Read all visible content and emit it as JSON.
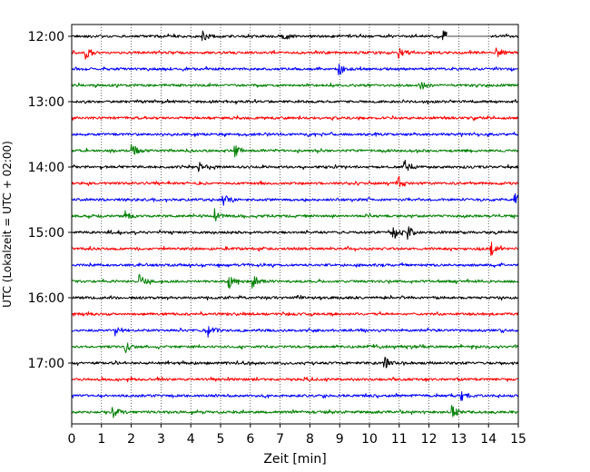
{
  "chart_data": {
    "type": "line",
    "title": "",
    "xlabel": "Zeit  [min]",
    "ylabel": "UTC (Lokalzeit = UTC + 02:00)",
    "xlim": [
      0,
      15
    ],
    "x_ticks": [
      "0",
      "1",
      "2",
      "3",
      "4",
      "5",
      "6",
      "7",
      "8",
      "9",
      "10",
      "11",
      "12",
      "13",
      "14",
      "15"
    ],
    "y_ticks": [
      "12:00",
      "13:00",
      "14:00",
      "15:00",
      "16:00",
      "17:00"
    ],
    "grid": "vertical dotted",
    "legend": "none",
    "trace_interval_minutes": 15,
    "series": [
      {
        "start": "12:00",
        "color": "#000000"
      },
      {
        "start": "12:15",
        "color": "#ff0000"
      },
      {
        "start": "12:30",
        "color": "#0000ff"
      },
      {
        "start": "12:45",
        "color": "#008000"
      },
      {
        "start": "13:00",
        "color": "#000000"
      },
      {
        "start": "13:15",
        "color": "#ff0000"
      },
      {
        "start": "13:30",
        "color": "#0000ff"
      },
      {
        "start": "13:45",
        "color": "#008000"
      },
      {
        "start": "14:00",
        "color": "#000000"
      },
      {
        "start": "14:15",
        "color": "#ff0000"
      },
      {
        "start": "14:30",
        "color": "#0000ff"
      },
      {
        "start": "14:45",
        "color": "#008000"
      },
      {
        "start": "15:00",
        "color": "#000000"
      },
      {
        "start": "15:15",
        "color": "#ff0000"
      },
      {
        "start": "15:30",
        "color": "#0000ff"
      },
      {
        "start": "15:45",
        "color": "#008000"
      },
      {
        "start": "16:00",
        "color": "#000000"
      },
      {
        "start": "16:15",
        "color": "#ff0000"
      },
      {
        "start": "16:30",
        "color": "#0000ff"
      },
      {
        "start": "16:45",
        "color": "#008000"
      },
      {
        "start": "17:00",
        "color": "#000000"
      },
      {
        "start": "17:15",
        "color": "#ff0000"
      },
      {
        "start": "17:30",
        "color": "#0000ff"
      },
      {
        "start": "17:45",
        "color": "#008000"
      }
    ],
    "gaps": [
      {
        "start": "12:00",
        "x": [
          12.6,
          14.05
        ]
      }
    ],
    "events": [
      {
        "start": "12:00",
        "x": 4.4
      },
      {
        "start": "12:00",
        "x": 7.1
      },
      {
        "start": "12:00",
        "x": 12.5
      },
      {
        "start": "12:15",
        "x": 0.5
      },
      {
        "start": "12:15",
        "x": 11.0
      },
      {
        "start": "12:15",
        "x": 14.3
      },
      {
        "start": "12:30",
        "x": 9.0
      },
      {
        "start": "12:45",
        "x": 11.7
      },
      {
        "start": "13:45",
        "x": 2.05
      },
      {
        "start": "13:45",
        "x": 5.5
      },
      {
        "start": "14:00",
        "x": 4.3
      },
      {
        "start": "14:00",
        "x": 11.2
      },
      {
        "start": "14:15",
        "x": 11.0
      },
      {
        "start": "14:30",
        "x": 5.1
      },
      {
        "start": "14:30",
        "x": 14.9
      },
      {
        "start": "14:45",
        "x": 1.8
      },
      {
        "start": "14:45",
        "x": 4.8
      },
      {
        "start": "15:00",
        "x": 10.8
      },
      {
        "start": "15:00",
        "x": 11.3
      },
      {
        "start": "15:15",
        "x": 14.1
      },
      {
        "start": "15:45",
        "x": 2.3
      },
      {
        "start": "15:45",
        "x": 5.3
      },
      {
        "start": "15:45",
        "x": 6.1
      },
      {
        "start": "16:30",
        "x": 1.5
      },
      {
        "start": "16:30",
        "x": 4.6
      },
      {
        "start": "16:45",
        "x": 1.8
      },
      {
        "start": "17:00",
        "x": 10.5
      },
      {
        "start": "17:30",
        "x": 13.1
      },
      {
        "start": "17:45",
        "x": 1.4
      },
      {
        "start": "17:45",
        "x": 12.8
      }
    ]
  }
}
